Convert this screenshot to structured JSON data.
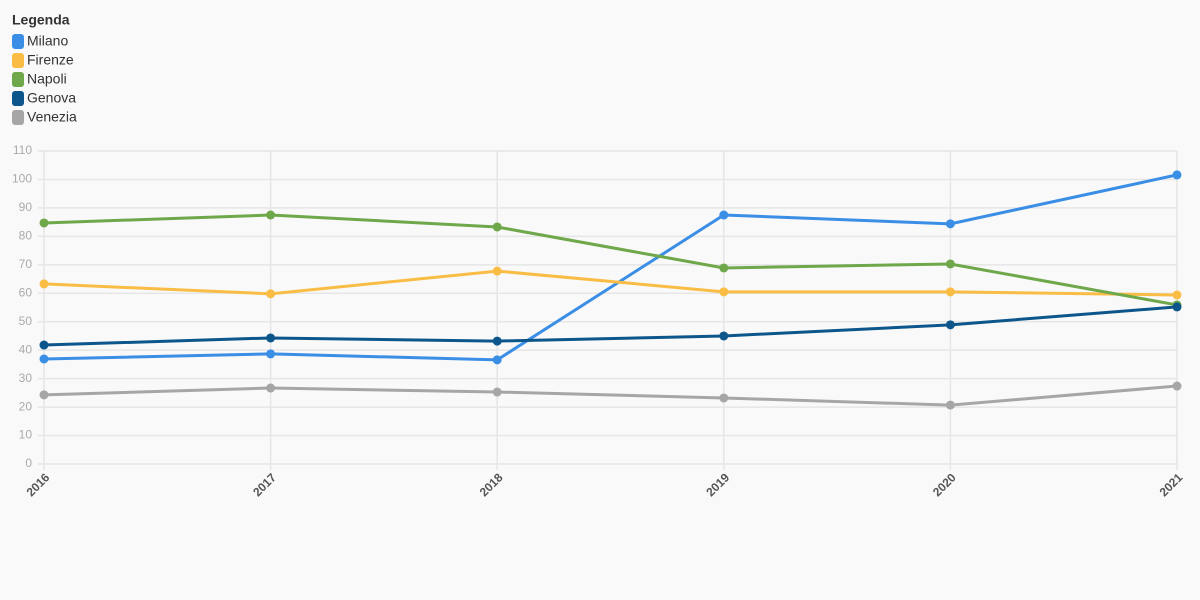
{
  "chart_data": {
    "type": "line",
    "legend_title": "Legenda",
    "legend_position": "top-left",
    "grid": true,
    "categories": [
      "2016",
      "2017",
      "2018",
      "2019",
      "2020",
      "2021"
    ],
    "series": [
      {
        "name": "Milano",
        "color": "#3a8ee6",
        "values": [
          36.9,
          38.7,
          36.6,
          87.5,
          84.4,
          101.6
        ]
      },
      {
        "name": "Firenze",
        "color": "#f9bd45",
        "values": [
          63.3,
          59.8,
          67.8,
          60.5,
          60.5,
          59.4
        ]
      },
      {
        "name": "Napoli",
        "color": "#6ea84a",
        "values": [
          84.7,
          87.5,
          83.3,
          68.9,
          70.3,
          55.9
        ]
      },
      {
        "name": "Genova",
        "color": "#0d568c",
        "values": [
          41.8,
          44.3,
          43.2,
          45.0,
          48.9,
          55.2
        ]
      },
      {
        "name": "Venezia",
        "color": "#a6a6a6",
        "values": [
          24.3,
          26.7,
          25.3,
          23.2,
          20.7,
          27.4
        ]
      }
    ],
    "ylim": [
      0,
      110
    ],
    "yticks": [
      0,
      10,
      20,
      30,
      40,
      50,
      60,
      70,
      80,
      90,
      100,
      110
    ]
  }
}
